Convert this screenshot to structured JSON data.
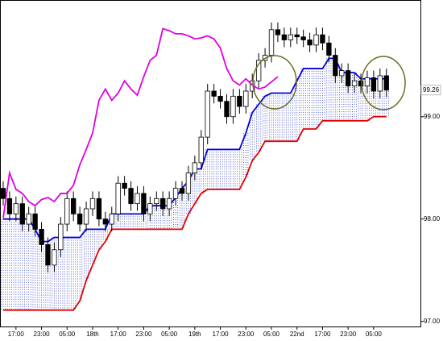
{
  "chart_data": {
    "type": "candlestick",
    "categories": [
      null,
      null,
      "17:00",
      null,
      null,
      null,
      "23:00",
      null,
      null,
      null,
      "05:00",
      null,
      null,
      null,
      "18th",
      null,
      null,
      null,
      "17:00",
      null,
      null,
      null,
      "23:00",
      null,
      null,
      null,
      "05:00",
      null,
      null,
      null,
      "19th",
      null,
      null,
      null,
      "17:00",
      null,
      null,
      null,
      "23:00",
      null,
      null,
      null,
      "05:00",
      null,
      null,
      null,
      "22nd",
      null,
      null,
      null,
      "17:00",
      null,
      null,
      null,
      "23:00",
      null,
      null,
      null,
      "05:00",
      null,
      null
    ],
    "open": [
      98.3,
      98.2,
      98.05,
      98.15,
      97.95,
      98.05,
      97.9,
      97.75,
      97.55,
      97.7,
      97.95,
      98.2,
      98.05,
      97.95,
      98.1,
      98.2,
      98.0,
      97.95,
      98.05,
      98.35,
      98.3,
      98.15,
      98.25,
      98.05,
      98.15,
      98.2,
      98.1,
      98.2,
      98.3,
      98.25,
      98.45,
      98.55,
      98.8,
      99.25,
      99.2,
      99.15,
      99.0,
      99.2,
      99.1,
      99.25,
      99.35,
      99.55,
      99.6,
      99.85,
      99.8,
      99.75,
      99.8,
      99.78,
      99.75,
      99.7,
      99.8,
      99.72,
      99.6,
      99.4,
      99.45,
      99.3,
      99.35,
      99.3,
      99.38,
      99.25,
      99.4
    ],
    "high": [
      98.37,
      98.27,
      98.22,
      98.22,
      98.12,
      98.12,
      97.97,
      97.82,
      97.77,
      98.02,
      98.27,
      98.27,
      98.12,
      98.17,
      98.27,
      98.27,
      98.07,
      98.12,
      98.42,
      98.42,
      98.37,
      98.32,
      98.32,
      98.22,
      98.27,
      98.27,
      98.27,
      98.37,
      98.37,
      98.52,
      98.62,
      98.87,
      99.32,
      99.32,
      99.27,
      99.22,
      99.27,
      99.27,
      99.32,
      99.42,
      99.62,
      99.67,
      99.92,
      99.92,
      99.87,
      99.87,
      99.87,
      99.85,
      99.82,
      99.87,
      99.87,
      99.79,
      99.67,
      99.52,
      99.52,
      99.42,
      99.42,
      99.45,
      99.45,
      99.47,
      99.47
    ],
    "low": [
      98.13,
      97.98,
      97.98,
      97.88,
      97.88,
      97.83,
      97.68,
      97.48,
      97.48,
      97.63,
      97.88,
      97.98,
      97.88,
      97.88,
      98.03,
      97.93,
      97.88,
      97.88,
      97.98,
      98.23,
      98.08,
      98.08,
      97.98,
      97.98,
      98.08,
      98.03,
      98.03,
      98.13,
      98.18,
      98.18,
      98.38,
      98.48,
      98.73,
      99.13,
      99.08,
      98.93,
      98.93,
      99.03,
      99.03,
      99.18,
      99.28,
      99.48,
      99.53,
      99.73,
      99.68,
      99.68,
      99.71,
      99.68,
      99.63,
      99.63,
      99.65,
      99.53,
      99.33,
      99.33,
      99.23,
      99.23,
      99.23,
      99.23,
      99.18,
      99.18,
      99.19
    ],
    "close": [
      98.2,
      98.05,
      98.15,
      97.95,
      98.05,
      97.9,
      97.75,
      97.55,
      97.7,
      97.95,
      98.2,
      98.05,
      97.95,
      98.1,
      98.2,
      98.0,
      97.95,
      98.05,
      98.35,
      98.3,
      98.15,
      98.25,
      98.05,
      98.15,
      98.2,
      98.1,
      98.2,
      98.3,
      98.25,
      98.45,
      98.55,
      98.8,
      99.25,
      99.2,
      99.15,
      99.0,
      99.2,
      99.1,
      99.25,
      99.35,
      99.55,
      99.6,
      99.85,
      99.8,
      99.75,
      99.8,
      99.78,
      99.75,
      99.7,
      99.8,
      99.72,
      99.6,
      99.4,
      99.45,
      99.3,
      99.35,
      99.3,
      99.38,
      99.25,
      99.4,
      99.26
    ],
    "up_color": "#ffffff",
    "down_color": "#000000",
    "lines": [
      {
        "color": "#0000e0",
        "values": [
          98.0,
          98.0,
          98.0,
          98.0,
          98.0,
          97.9,
          97.78,
          97.78,
          97.82,
          97.82,
          97.82,
          97.82,
          97.82,
          97.9,
          97.9,
          97.9,
          97.9,
          98.05,
          98.05,
          98.05,
          98.05,
          98.05,
          98.05,
          98.13,
          98.13,
          98.13,
          98.13,
          98.21,
          98.3,
          98.37,
          98.49,
          98.49,
          98.68,
          98.68,
          98.68,
          98.68,
          98.68,
          98.68,
          98.84,
          99.04,
          99.12,
          99.2,
          99.23,
          99.23,
          99.23,
          99.23,
          99.35,
          99.47,
          99.47,
          99.47,
          99.47,
          99.57,
          99.57,
          99.43,
          99.43,
          99.43,
          99.37,
          99.37,
          99.37,
          99.37,
          99.37
        ]
      },
      {
        "color": "#e00000",
        "values": [
          97.11,
          97.11,
          97.11,
          97.11,
          97.11,
          97.11,
          97.11,
          97.11,
          97.11,
          97.11,
          97.11,
          97.11,
          97.2,
          97.4,
          97.55,
          97.7,
          97.78,
          97.9,
          97.9,
          97.9,
          97.9,
          97.9,
          97.9,
          97.9,
          97.9,
          97.9,
          97.9,
          97.9,
          97.9,
          98.05,
          98.15,
          98.25,
          98.29,
          98.29,
          98.29,
          98.29,
          98.29,
          98.29,
          98.41,
          98.57,
          98.65,
          98.76,
          98.76,
          98.76,
          98.76,
          98.76,
          98.76,
          98.88,
          98.88,
          98.88,
          98.96,
          98.96,
          98.96,
          98.96,
          98.96,
          98.96,
          98.96,
          98.96,
          99.0,
          99.0,
          99.0
        ]
      },
      {
        "color": "#e000e0",
        "values": [
          98.01,
          98.45,
          98.29,
          98.25,
          98.17,
          98.13,
          98.19,
          98.21,
          98.17,
          98.25,
          98.25,
          98.33,
          98.53,
          98.68,
          98.84,
          99.16,
          99.27,
          99.16,
          99.23,
          99.35,
          99.27,
          99.21,
          99.39,
          99.55,
          99.6,
          99.86,
          99.84,
          99.81,
          99.81,
          99.79,
          99.76,
          99.77,
          99.79,
          99.76,
          99.67,
          99.47,
          99.35,
          99.31,
          99.37,
          99.31,
          99.27,
          99.29,
          99.34,
          99.39,
          null,
          null,
          null,
          null,
          null,
          null,
          null,
          null,
          null,
          null,
          null,
          null,
          null,
          null,
          null,
          null,
          null
        ]
      }
    ],
    "cloud_color": "#2030c0",
    "ylim": [
      96.95,
      100.14
    ],
    "yticks": [
      {
        "value": 97,
        "label": "97.00"
      },
      {
        "value": 98,
        "label": "98.00"
      },
      {
        "value": 99,
        "label": "99.00"
      }
    ],
    "last_price": 99.26
  }
}
